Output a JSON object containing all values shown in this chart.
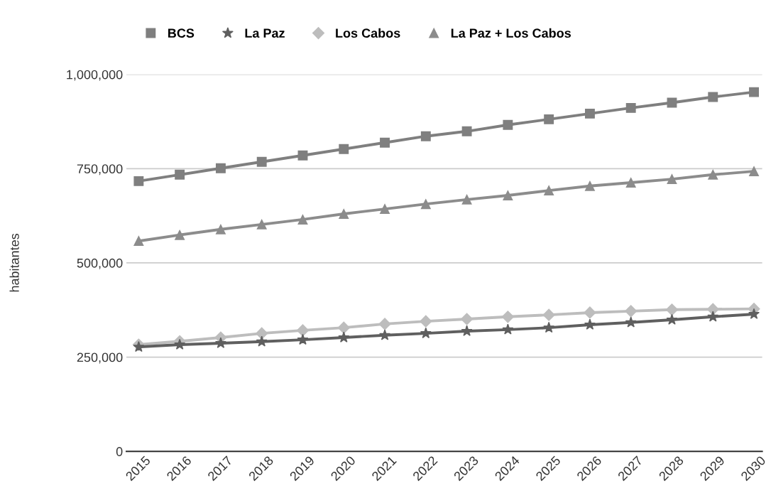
{
  "chart_data": {
    "type": "line",
    "ylabel": "habitantes",
    "categories": [
      "2015",
      "2016",
      "2017",
      "2018",
      "2019",
      "2020",
      "2021",
      "2022",
      "2023",
      "2024",
      "2025",
      "2026",
      "2027",
      "2028",
      "2029",
      "2030"
    ],
    "series": [
      {
        "name": "BCS",
        "color": "#7f7f7f",
        "marker": "square",
        "values": [
          717000,
          734000,
          751000,
          768000,
          785000,
          802000,
          819000,
          836000,
          849000,
          866000,
          881000,
          896000,
          911000,
          925000,
          940000,
          953000
        ]
      },
      {
        "name": "La Paz",
        "color": "#5f5f5f",
        "marker": "star",
        "values": [
          277000,
          283000,
          287000,
          291000,
          296000,
          302000,
          308000,
          313000,
          319000,
          323000,
          328000,
          336000,
          342000,
          349000,
          357000,
          364000
        ]
      },
      {
        "name": "Los Cabos",
        "color": "#bdbdbd",
        "marker": "diamond",
        "values": [
          283000,
          292000,
          302000,
          313000,
          321000,
          328000,
          338000,
          345000,
          351000,
          357000,
          362000,
          368000,
          372000,
          376000,
          377000,
          378000
        ]
      },
      {
        "name": "La Paz + Los Cabos",
        "color": "#8c8c8c",
        "marker": "triangle",
        "values": [
          558000,
          574000,
          589000,
          602000,
          615000,
          630000,
          643000,
          656000,
          668000,
          679000,
          692000,
          704000,
          713000,
          722000,
          734000,
          743000
        ]
      }
    ],
    "ylim": [
      0,
      1000000
    ],
    "yticks": [
      {
        "value": 0,
        "label": "0"
      },
      {
        "value": 250000,
        "label": "250,000"
      },
      {
        "value": 500000,
        "label": "500,000"
      },
      {
        "value": 750000,
        "label": "750,000"
      },
      {
        "value": 1000000,
        "label": "1,000,000"
      }
    ],
    "grid": "y",
    "legend": "top left",
    "line_style": "solid"
  }
}
